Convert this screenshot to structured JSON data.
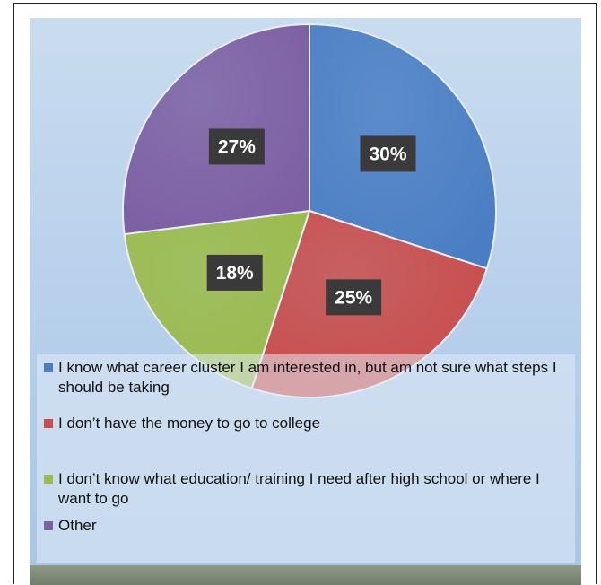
{
  "chart_data": {
    "type": "pie",
    "slices": [
      {
        "label": "I know what career cluster I am interested in, but am not sure what steps I should be taking",
        "value": 30,
        "value_label": "30%",
        "color": "#4a7ec4"
      },
      {
        "label": "I don’t have the money to go to college",
        "value": 25,
        "value_label": "25%",
        "color": "#c94c4a"
      },
      {
        "label": "I don’t know what education/ training I need after high school or where I want to go",
        "value": 18,
        "value_label": "18%",
        "color": "#9bbb4a"
      },
      {
        "label": "Other",
        "value": 27,
        "value_label": "27%",
        "color": "#7d5fa3"
      }
    ],
    "start_angle": "top",
    "direction": "clockwise",
    "legend_position": "bottom"
  }
}
